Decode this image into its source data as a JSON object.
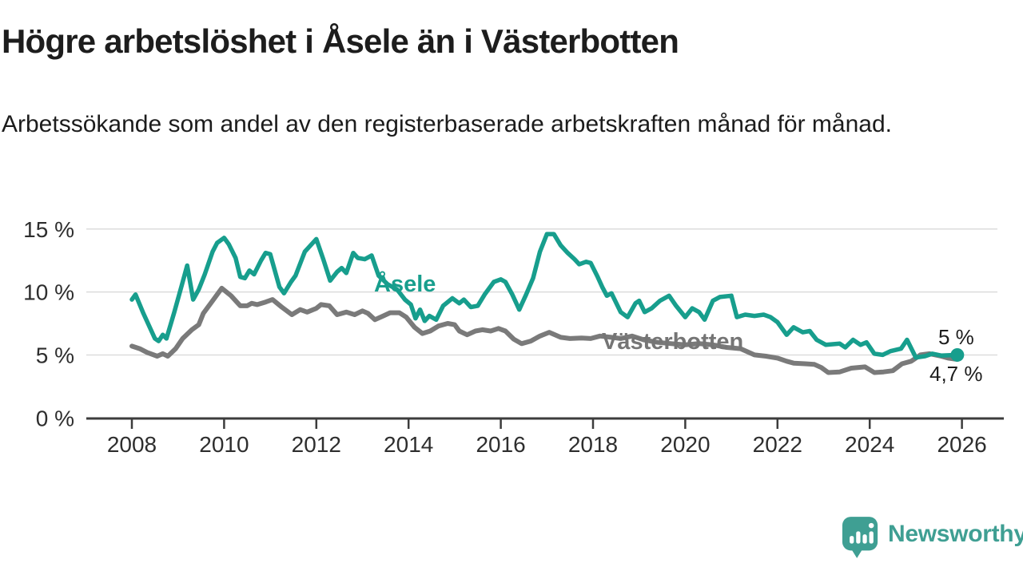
{
  "header": {
    "title": "Högre arbetslöshet i Åsele än i Västerbotten",
    "subtitle": "Arbetssökande som andel av den registerbaserade arbetskraften månad för månad."
  },
  "footer": {
    "brand": "Newsworthy"
  },
  "colors": {
    "accent_teal": "#179e8d",
    "series_gray": "#7a7a7a",
    "logo_teal": "#3f9f93",
    "grid": "#dcdcdc",
    "axis": "#3c3c3c",
    "text": "#1d1d1d"
  },
  "chart_data": {
    "type": "line",
    "title": "Högre arbetslöshet i Åsele än i Västerbotten",
    "xlabel": "",
    "ylabel": "Arbetssökande som andel av den registerbaserade arbetskraften",
    "unit": "%",
    "xlim": [
      2007.6,
      2026.8
    ],
    "ylim": [
      0,
      15.6
    ],
    "grid": "horizontal",
    "legend_position": "inline-labels",
    "x_ticks": [
      2008,
      2010,
      2012,
      2014,
      2016,
      2018,
      2020,
      2022,
      2024,
      2026
    ],
    "y_ticks": [
      {
        "value": 0,
        "label": "0 %"
      },
      {
        "value": 5,
        "label": "5 %"
      },
      {
        "value": 10,
        "label": "10 %"
      },
      {
        "value": 15,
        "label": "15 %"
      }
    ],
    "style": {
      "grid_color": "#dcdcdc",
      "axis_color": "#3c3c3c",
      "tick_color": "#2e2e2e"
    },
    "series": [
      {
        "id": "asele",
        "name": "Åsele",
        "color": "#179e8d",
        "stroke_width": 5.5,
        "end_label": "5 %",
        "end_value": 5.0,
        "end_dot": true,
        "points": [
          [
            2008.0,
            9.4
          ],
          [
            2008.08,
            9.8
          ],
          [
            2008.25,
            8.3
          ],
          [
            2008.5,
            6.3
          ],
          [
            2008.58,
            6.1
          ],
          [
            2008.67,
            6.6
          ],
          [
            2008.75,
            6.3
          ],
          [
            2008.92,
            8.4
          ],
          [
            2009.08,
            10.5
          ],
          [
            2009.2,
            12.1
          ],
          [
            2009.33,
            9.4
          ],
          [
            2009.45,
            10.2
          ],
          [
            2009.58,
            11.4
          ],
          [
            2009.75,
            13.2
          ],
          [
            2009.85,
            13.9
          ],
          [
            2010.0,
            14.3
          ],
          [
            2010.1,
            13.8
          ],
          [
            2010.25,
            12.7
          ],
          [
            2010.35,
            11.2
          ],
          [
            2010.45,
            11.1
          ],
          [
            2010.55,
            11.7
          ],
          [
            2010.65,
            11.4
          ],
          [
            2010.8,
            12.5
          ],
          [
            2010.9,
            13.1
          ],
          [
            2011.0,
            13.0
          ],
          [
            2011.2,
            10.4
          ],
          [
            2011.3,
            9.9
          ],
          [
            2011.45,
            10.8
          ],
          [
            2011.55,
            11.3
          ],
          [
            2011.75,
            13.2
          ],
          [
            2011.9,
            13.8
          ],
          [
            2012.0,
            14.2
          ],
          [
            2012.15,
            12.6
          ],
          [
            2012.3,
            10.9
          ],
          [
            2012.45,
            11.6
          ],
          [
            2012.55,
            11.9
          ],
          [
            2012.65,
            11.5
          ],
          [
            2012.8,
            13.1
          ],
          [
            2012.9,
            12.7
          ],
          [
            2013.05,
            12.6
          ],
          [
            2013.2,
            12.9
          ],
          [
            2013.35,
            11.3
          ],
          [
            2013.55,
            10.6
          ],
          [
            2013.75,
            10.2
          ],
          [
            2013.92,
            9.4
          ],
          [
            2014.05,
            9.0
          ],
          [
            2014.15,
            7.9
          ],
          [
            2014.25,
            8.6
          ],
          [
            2014.35,
            7.7
          ],
          [
            2014.45,
            8.1
          ],
          [
            2014.6,
            7.8
          ],
          [
            2014.75,
            8.9
          ],
          [
            2014.95,
            9.5
          ],
          [
            2015.1,
            9.1
          ],
          [
            2015.2,
            9.4
          ],
          [
            2015.35,
            8.8
          ],
          [
            2015.5,
            8.9
          ],
          [
            2015.65,
            9.8
          ],
          [
            2015.85,
            10.8
          ],
          [
            2016.0,
            11.0
          ],
          [
            2016.1,
            10.8
          ],
          [
            2016.25,
            9.8
          ],
          [
            2016.4,
            8.6
          ],
          [
            2016.55,
            9.8
          ],
          [
            2016.7,
            11.1
          ],
          [
            2016.85,
            13.2
          ],
          [
            2017.0,
            14.6
          ],
          [
            2017.15,
            14.6
          ],
          [
            2017.3,
            13.7
          ],
          [
            2017.45,
            13.1
          ],
          [
            2017.6,
            12.6
          ],
          [
            2017.7,
            12.2
          ],
          [
            2017.85,
            12.4
          ],
          [
            2017.95,
            12.3
          ],
          [
            2018.1,
            11.2
          ],
          [
            2018.2,
            10.4
          ],
          [
            2018.3,
            9.7
          ],
          [
            2018.4,
            9.9
          ],
          [
            2018.6,
            8.4
          ],
          [
            2018.75,
            8.0
          ],
          [
            2018.92,
            9.1
          ],
          [
            2019.0,
            9.3
          ],
          [
            2019.12,
            8.4
          ],
          [
            2019.27,
            8.7
          ],
          [
            2019.45,
            9.3
          ],
          [
            2019.65,
            9.7
          ],
          [
            2019.8,
            8.9
          ],
          [
            2020.0,
            8.0
          ],
          [
            2020.15,
            8.7
          ],
          [
            2020.3,
            8.4
          ],
          [
            2020.42,
            7.8
          ],
          [
            2020.6,
            9.3
          ],
          [
            2020.75,
            9.6
          ],
          [
            2021.0,
            9.7
          ],
          [
            2021.12,
            8.0
          ],
          [
            2021.3,
            8.2
          ],
          [
            2021.5,
            8.1
          ],
          [
            2021.7,
            8.2
          ],
          [
            2021.85,
            8.0
          ],
          [
            2022.0,
            7.6
          ],
          [
            2022.2,
            6.6
          ],
          [
            2022.35,
            7.2
          ],
          [
            2022.55,
            6.8
          ],
          [
            2022.7,
            6.9
          ],
          [
            2022.85,
            6.2
          ],
          [
            2023.05,
            5.8
          ],
          [
            2023.35,
            5.9
          ],
          [
            2023.47,
            5.6
          ],
          [
            2023.64,
            6.2
          ],
          [
            2023.8,
            5.8
          ],
          [
            2023.93,
            6.0
          ],
          [
            2024.1,
            5.1
          ],
          [
            2024.28,
            5.0
          ],
          [
            2024.45,
            5.3
          ],
          [
            2024.68,
            5.5
          ],
          [
            2024.81,
            6.2
          ],
          [
            2025.0,
            4.8
          ],
          [
            2025.2,
            4.9
          ],
          [
            2025.36,
            5.1
          ],
          [
            2025.55,
            4.95
          ],
          [
            2025.9,
            5.0
          ]
        ]
      },
      {
        "id": "vasterbotten",
        "name": "Västerbotten",
        "color": "#7a7a7a",
        "stroke_width": 6,
        "end_label": "4,7 %",
        "end_value": 4.7,
        "end_dot": false,
        "points": [
          [
            2008.0,
            5.7
          ],
          [
            2008.17,
            5.5
          ],
          [
            2008.33,
            5.2
          ],
          [
            2008.55,
            4.9
          ],
          [
            2008.67,
            5.1
          ],
          [
            2008.78,
            4.9
          ],
          [
            2008.95,
            5.5
          ],
          [
            2009.1,
            6.3
          ],
          [
            2009.3,
            7.0
          ],
          [
            2009.45,
            7.4
          ],
          [
            2009.55,
            8.3
          ],
          [
            2009.75,
            9.3
          ],
          [
            2009.95,
            10.3
          ],
          [
            2010.15,
            9.7
          ],
          [
            2010.35,
            8.9
          ],
          [
            2010.5,
            8.9
          ],
          [
            2010.6,
            9.1
          ],
          [
            2010.72,
            9.0
          ],
          [
            2010.9,
            9.2
          ],
          [
            2011.05,
            9.4
          ],
          [
            2011.25,
            8.8
          ],
          [
            2011.47,
            8.2
          ],
          [
            2011.65,
            8.6
          ],
          [
            2011.8,
            8.4
          ],
          [
            2012.0,
            8.7
          ],
          [
            2012.1,
            9.0
          ],
          [
            2012.28,
            8.9
          ],
          [
            2012.45,
            8.2
          ],
          [
            2012.65,
            8.4
          ],
          [
            2012.83,
            8.2
          ],
          [
            2013.0,
            8.5
          ],
          [
            2013.12,
            8.3
          ],
          [
            2013.27,
            7.8
          ],
          [
            2013.45,
            8.1
          ],
          [
            2013.6,
            8.35
          ],
          [
            2013.8,
            8.35
          ],
          [
            2013.95,
            8.0
          ],
          [
            2014.13,
            7.2
          ],
          [
            2014.3,
            6.7
          ],
          [
            2014.47,
            6.9
          ],
          [
            2014.65,
            7.3
          ],
          [
            2014.85,
            7.5
          ],
          [
            2015.0,
            7.4
          ],
          [
            2015.1,
            6.9
          ],
          [
            2015.27,
            6.6
          ],
          [
            2015.45,
            6.9
          ],
          [
            2015.6,
            7.0
          ],
          [
            2015.78,
            6.9
          ],
          [
            2015.95,
            7.1
          ],
          [
            2016.1,
            6.9
          ],
          [
            2016.28,
            6.25
          ],
          [
            2016.45,
            5.9
          ],
          [
            2016.65,
            6.1
          ],
          [
            2016.85,
            6.5
          ],
          [
            2017.05,
            6.8
          ],
          [
            2017.3,
            6.4
          ],
          [
            2017.5,
            6.3
          ],
          [
            2017.75,
            6.35
          ],
          [
            2017.95,
            6.3
          ],
          [
            2018.15,
            6.5
          ],
          [
            2018.4,
            6.4
          ],
          [
            2018.6,
            6.3
          ],
          [
            2018.85,
            6.5
          ],
          [
            2019.1,
            6.2
          ],
          [
            2019.4,
            6.0
          ],
          [
            2019.7,
            5.9
          ],
          [
            2020.0,
            5.8
          ],
          [
            2020.3,
            5.9
          ],
          [
            2020.6,
            5.8
          ],
          [
            2020.9,
            5.6
          ],
          [
            2021.2,
            5.5
          ],
          [
            2021.5,
            5.0
          ],
          [
            2021.75,
            4.9
          ],
          [
            2022.0,
            4.75
          ],
          [
            2022.2,
            4.5
          ],
          [
            2022.35,
            4.35
          ],
          [
            2022.6,
            4.3
          ],
          [
            2022.8,
            4.25
          ],
          [
            2022.95,
            4.0
          ],
          [
            2023.1,
            3.6
          ],
          [
            2023.35,
            3.65
          ],
          [
            2023.6,
            3.95
          ],
          [
            2023.9,
            4.05
          ],
          [
            2024.1,
            3.6
          ],
          [
            2024.3,
            3.65
          ],
          [
            2024.5,
            3.75
          ],
          [
            2024.7,
            4.3
          ],
          [
            2024.9,
            4.5
          ],
          [
            2025.1,
            5.0
          ],
          [
            2025.3,
            5.1
          ],
          [
            2025.55,
            4.9
          ],
          [
            2025.7,
            4.75
          ],
          [
            2025.9,
            4.65
          ]
        ]
      }
    ]
  }
}
